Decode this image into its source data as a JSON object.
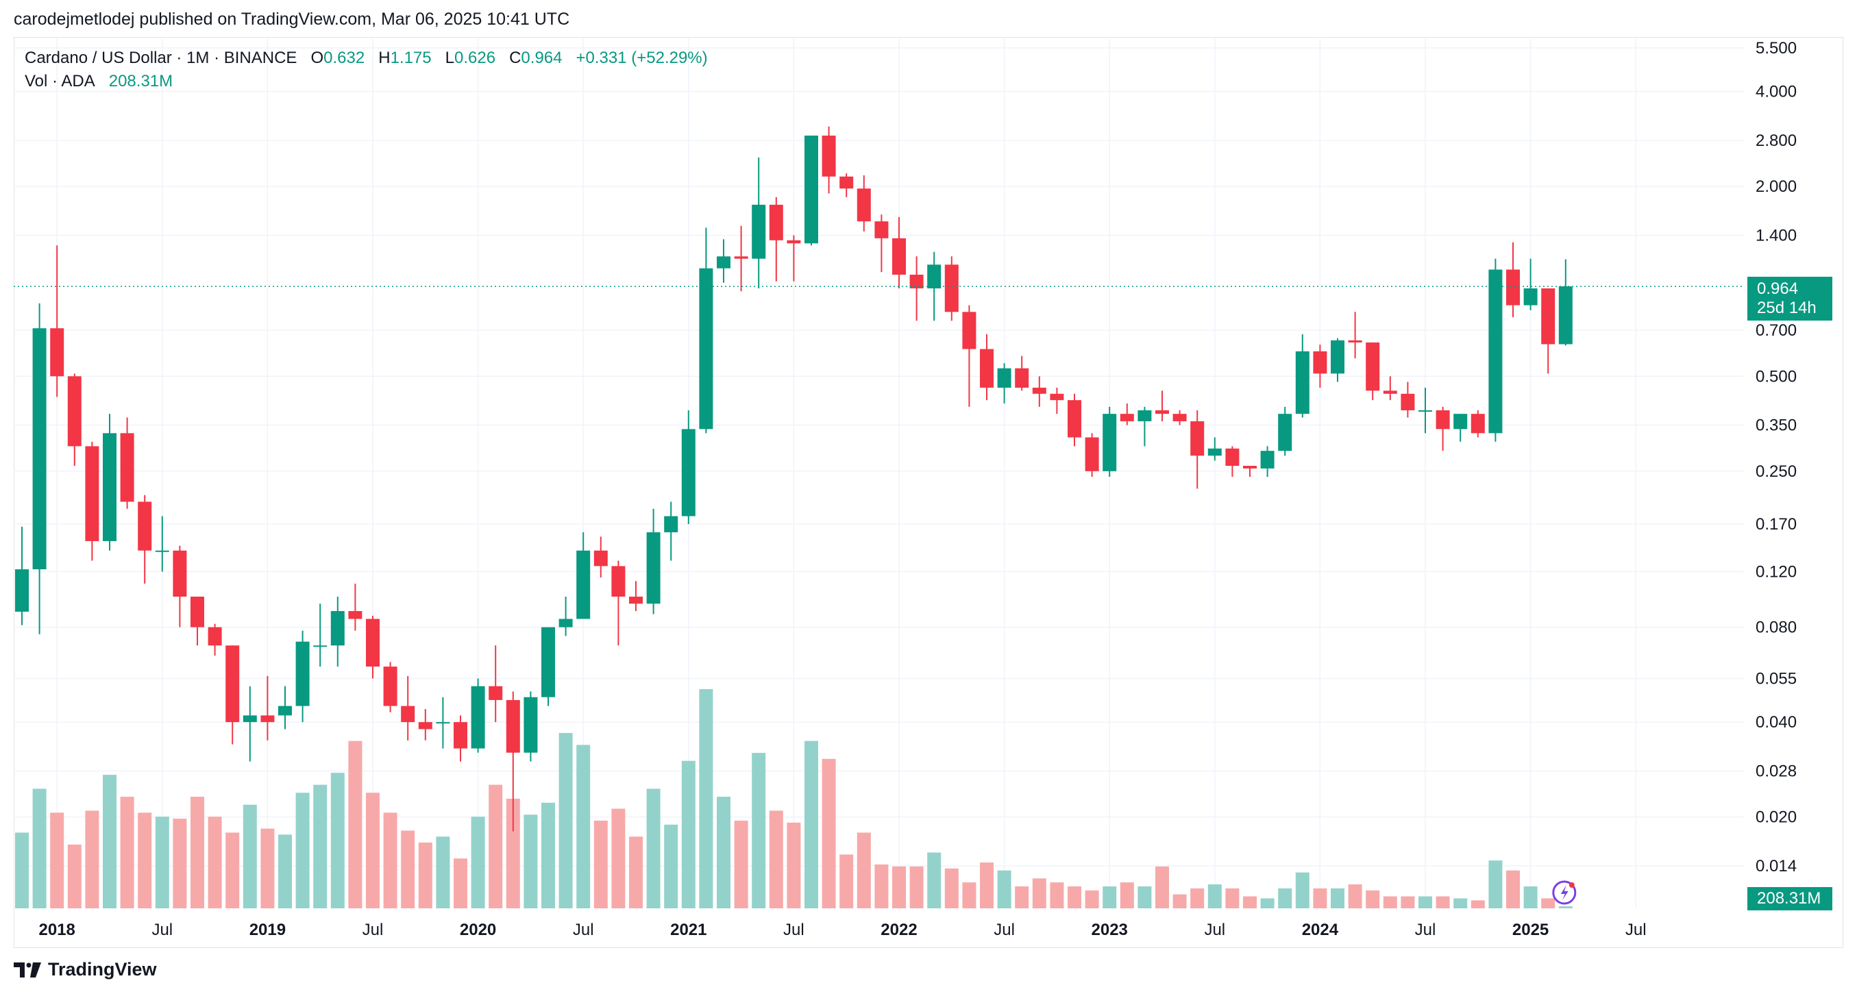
{
  "header": {
    "published_line": "carodejmetlodej published on TradingView.com, Mar 06, 2025 10:41 UTC"
  },
  "legend": {
    "symbol": "Cardano / US Dollar · 1M · BINANCE",
    "o_label": "O",
    "o_value": "0.632",
    "h_label": "H",
    "h_value": "1.175",
    "l_label": "L",
    "l_value": "0.626",
    "c_label": "C",
    "c_value": "0.964",
    "change": "+0.331 (+52.29%)",
    "vol_label": "Vol · ADA",
    "vol_value": "208.31M"
  },
  "price_tag": {
    "price": "0.964",
    "countdown": "25d 14h"
  },
  "volume_tag": "208.31M",
  "footer": {
    "brand": "TradingView"
  },
  "colors": {
    "up": "#089981",
    "down": "#f23645",
    "up_volume": "#93d2cb",
    "down_volume": "#f7a9a9",
    "grid": "#f0f3fa"
  },
  "chart_data": {
    "type": "candlestick",
    "interval": "1M",
    "y_scale": "log",
    "y_ticks": [
      "5.500",
      "4.000",
      "2.800",
      "2.000",
      "1.400",
      "0.964",
      "0.700",
      "0.500",
      "0.350",
      "0.250",
      "0.170",
      "0.120",
      "0.080",
      "0.055",
      "0.040",
      "0.028",
      "0.020",
      "0.014"
    ],
    "x_ticks": [
      "2018",
      "Jul",
      "2019",
      "Jul",
      "2020",
      "Jul",
      "2021",
      "Jul",
      "2022",
      "Jul",
      "2023",
      "Jul",
      "2024",
      "Jul",
      "2025",
      "Jul"
    ],
    "candles": [
      {
        "date": "2017-11",
        "o": 0.0896,
        "h": 0.1667,
        "l": 0.0812,
        "c": 0.1221,
        "v": 38
      },
      {
        "date": "2017-12",
        "o": 0.1221,
        "h": 0.8516,
        "l": 0.076,
        "c": 0.71,
        "v": 60
      },
      {
        "date": "2018-01",
        "o": 0.71,
        "h": 1.3,
        "l": 0.43,
        "c": 0.5,
        "v": 48
      },
      {
        "date": "2018-02",
        "o": 0.5,
        "h": 0.51,
        "l": 0.26,
        "c": 0.3,
        "v": 32
      },
      {
        "date": "2018-03",
        "o": 0.3,
        "h": 0.31,
        "l": 0.13,
        "c": 0.15,
        "v": 49
      },
      {
        "date": "2018-04",
        "o": 0.15,
        "h": 0.38,
        "l": 0.14,
        "c": 0.33,
        "v": 67
      },
      {
        "date": "2018-05",
        "o": 0.33,
        "h": 0.37,
        "l": 0.19,
        "c": 0.2,
        "v": 56
      },
      {
        "date": "2018-06",
        "o": 0.2,
        "h": 0.21,
        "l": 0.11,
        "c": 0.14,
        "v": 48
      },
      {
        "date": "2018-07",
        "o": 0.14,
        "h": 0.18,
        "l": 0.12,
        "c": 0.14,
        "v": 46
      },
      {
        "date": "2018-08",
        "o": 0.14,
        "h": 0.145,
        "l": 0.08,
        "c": 0.1,
        "v": 45
      },
      {
        "date": "2018-09",
        "o": 0.1,
        "h": 0.096,
        "l": 0.07,
        "c": 0.08,
        "v": 56
      },
      {
        "date": "2018-10",
        "o": 0.08,
        "h": 0.082,
        "l": 0.065,
        "c": 0.07,
        "v": 46
      },
      {
        "date": "2018-11",
        "o": 0.07,
        "h": 0.07,
        "l": 0.034,
        "c": 0.04,
        "v": 38
      },
      {
        "date": "2018-12",
        "o": 0.04,
        "h": 0.052,
        "l": 0.03,
        "c": 0.042,
        "v": 52
      },
      {
        "date": "2019-01",
        "o": 0.042,
        "h": 0.056,
        "l": 0.035,
        "c": 0.04,
        "v": 40
      },
      {
        "date": "2019-02",
        "o": 0.042,
        "h": 0.052,
        "l": 0.038,
        "c": 0.045,
        "v": 37
      },
      {
        "date": "2019-03",
        "o": 0.045,
        "h": 0.078,
        "l": 0.04,
        "c": 0.072,
        "v": 58
      },
      {
        "date": "2019-04",
        "o": 0.07,
        "h": 0.095,
        "l": 0.06,
        "c": 0.07,
        "v": 62
      },
      {
        "date": "2019-05",
        "o": 0.07,
        "h": 0.1,
        "l": 0.06,
        "c": 0.09,
        "v": 68
      },
      {
        "date": "2019-06",
        "o": 0.09,
        "h": 0.11,
        "l": 0.078,
        "c": 0.085,
        "v": 84
      },
      {
        "date": "2019-07",
        "o": 0.085,
        "h": 0.087,
        "l": 0.055,
        "c": 0.06,
        "v": 58
      },
      {
        "date": "2019-08",
        "o": 0.06,
        "h": 0.062,
        "l": 0.043,
        "c": 0.045,
        "v": 48
      },
      {
        "date": "2019-09",
        "o": 0.045,
        "h": 0.056,
        "l": 0.035,
        "c": 0.04,
        "v": 39
      },
      {
        "date": "2019-10",
        "o": 0.04,
        "h": 0.044,
        "l": 0.035,
        "c": 0.038,
        "v": 33
      },
      {
        "date": "2019-11",
        "o": 0.04,
        "h": 0.048,
        "l": 0.033,
        "c": 0.04,
        "v": 36
      },
      {
        "date": "2019-12",
        "o": 0.04,
        "h": 0.042,
        "l": 0.03,
        "c": 0.033,
        "v": 25
      },
      {
        "date": "2020-01",
        "o": 0.033,
        "h": 0.055,
        "l": 0.032,
        "c": 0.052,
        "v": 46
      },
      {
        "date": "2020-02",
        "o": 0.052,
        "h": 0.07,
        "l": 0.04,
        "c": 0.047,
        "v": 62
      },
      {
        "date": "2020-03",
        "o": 0.047,
        "h": 0.05,
        "l": 0.018,
        "c": 0.032,
        "v": 55
      },
      {
        "date": "2020-04",
        "o": 0.032,
        "h": 0.05,
        "l": 0.03,
        "c": 0.048,
        "v": 47
      },
      {
        "date": "2020-05",
        "o": 0.048,
        "h": 0.072,
        "l": 0.045,
        "c": 0.08,
        "v": 53
      },
      {
        "date": "2020-06",
        "o": 0.08,
        "h": 0.1,
        "l": 0.075,
        "c": 0.085,
        "v": 88
      },
      {
        "date": "2020-07",
        "o": 0.085,
        "h": 0.16,
        "l": 0.09,
        "c": 0.14,
        "v": 82
      },
      {
        "date": "2020-08",
        "o": 0.14,
        "h": 0.155,
        "l": 0.115,
        "c": 0.125,
        "v": 44
      },
      {
        "date": "2020-09",
        "o": 0.125,
        "h": 0.13,
        "l": 0.07,
        "c": 0.1,
        "v": 50
      },
      {
        "date": "2020-10",
        "o": 0.1,
        "h": 0.112,
        "l": 0.09,
        "c": 0.095,
        "v": 36
      },
      {
        "date": "2020-11",
        "o": 0.095,
        "h": 0.19,
        "l": 0.088,
        "c": 0.16,
        "v": 60
      },
      {
        "date": "2020-12",
        "o": 0.16,
        "h": 0.2,
        "l": 0.13,
        "c": 0.18,
        "v": 42
      },
      {
        "date": "2021-01",
        "o": 0.18,
        "h": 0.39,
        "l": 0.17,
        "c": 0.34,
        "v": 74
      },
      {
        "date": "2021-02",
        "o": 0.34,
        "h": 1.48,
        "l": 0.33,
        "c": 1.1,
        "v": 110
      },
      {
        "date": "2021-03",
        "o": 1.1,
        "h": 1.36,
        "l": 0.99,
        "c": 1.2,
        "v": 56
      },
      {
        "date": "2021-04",
        "o": 1.2,
        "h": 1.5,
        "l": 0.93,
        "c": 1.18,
        "v": 44
      },
      {
        "date": "2021-05",
        "o": 1.18,
        "h": 2.47,
        "l": 0.95,
        "c": 1.75,
        "v": 78
      },
      {
        "date": "2021-06",
        "o": 1.75,
        "h": 1.85,
        "l": 1.0,
        "c": 1.35,
        "v": 49
      },
      {
        "date": "2021-07",
        "o": 1.35,
        "h": 1.4,
        "l": 1.0,
        "c": 1.32,
        "v": 43
      },
      {
        "date": "2021-08",
        "o": 1.32,
        "h": 2.9,
        "l": 1.3,
        "c": 2.9,
        "v": 84
      },
      {
        "date": "2021-09",
        "o": 2.9,
        "h": 3.1,
        "l": 1.9,
        "c": 2.15,
        "v": 75
      },
      {
        "date": "2021-10",
        "o": 2.15,
        "h": 2.2,
        "l": 1.85,
        "c": 1.97,
        "v": 27
      },
      {
        "date": "2021-11",
        "o": 1.97,
        "h": 2.17,
        "l": 1.44,
        "c": 1.55,
        "v": 38
      },
      {
        "date": "2021-12",
        "o": 1.55,
        "h": 1.63,
        "l": 1.07,
        "c": 1.37,
        "v": 22
      },
      {
        "date": "2022-01",
        "o": 1.37,
        "h": 1.6,
        "l": 0.95,
        "c": 1.05,
        "v": 21
      },
      {
        "date": "2022-02",
        "o": 1.05,
        "h": 1.2,
        "l": 0.75,
        "c": 0.95,
        "v": 21
      },
      {
        "date": "2022-03",
        "o": 0.95,
        "h": 1.24,
        "l": 0.75,
        "c": 1.13,
        "v": 28
      },
      {
        "date": "2022-04",
        "o": 1.13,
        "h": 1.2,
        "l": 0.75,
        "c": 0.8,
        "v": 20
      },
      {
        "date": "2022-05",
        "o": 0.8,
        "h": 0.84,
        "l": 0.4,
        "c": 0.61,
        "v": 13
      },
      {
        "date": "2022-06",
        "o": 0.61,
        "h": 0.68,
        "l": 0.42,
        "c": 0.46,
        "v": 23
      },
      {
        "date": "2022-07",
        "o": 0.46,
        "h": 0.55,
        "l": 0.41,
        "c": 0.53,
        "v": 19
      },
      {
        "date": "2022-08",
        "o": 0.53,
        "h": 0.58,
        "l": 0.45,
        "c": 0.46,
        "v": 11
      },
      {
        "date": "2022-09",
        "o": 0.46,
        "h": 0.5,
        "l": 0.4,
        "c": 0.44,
        "v": 15
      },
      {
        "date": "2022-10",
        "o": 0.44,
        "h": 0.46,
        "l": 0.38,
        "c": 0.42,
        "v": 13
      },
      {
        "date": "2022-11",
        "o": 0.42,
        "h": 0.44,
        "l": 0.3,
        "c": 0.32,
        "v": 11
      },
      {
        "date": "2022-12",
        "o": 0.32,
        "h": 0.33,
        "l": 0.24,
        "c": 0.25,
        "v": 9
      },
      {
        "date": "2023-01",
        "o": 0.25,
        "h": 0.4,
        "l": 0.24,
        "c": 0.38,
        "v": 11
      },
      {
        "date": "2023-02",
        "o": 0.38,
        "h": 0.41,
        "l": 0.35,
        "c": 0.36,
        "v": 13
      },
      {
        "date": "2023-03",
        "o": 0.36,
        "h": 0.4,
        "l": 0.3,
        "c": 0.39,
        "v": 11
      },
      {
        "date": "2023-04",
        "o": 0.39,
        "h": 0.45,
        "l": 0.36,
        "c": 0.38,
        "v": 21
      },
      {
        "date": "2023-05",
        "o": 0.38,
        "h": 0.39,
        "l": 0.35,
        "c": 0.36,
        "v": 7
      },
      {
        "date": "2023-06",
        "o": 0.36,
        "h": 0.39,
        "l": 0.22,
        "c": 0.28,
        "v": 10
      },
      {
        "date": "2023-07",
        "o": 0.28,
        "h": 0.32,
        "l": 0.27,
        "c": 0.295,
        "v": 12
      },
      {
        "date": "2023-08",
        "o": 0.295,
        "h": 0.3,
        "l": 0.24,
        "c": 0.26,
        "v": 10
      },
      {
        "date": "2023-09",
        "o": 0.26,
        "h": 0.26,
        "l": 0.24,
        "c": 0.255,
        "v": 6
      },
      {
        "date": "2023-10",
        "o": 0.255,
        "h": 0.3,
        "l": 0.24,
        "c": 0.29,
        "v": 5
      },
      {
        "date": "2023-11",
        "o": 0.29,
        "h": 0.4,
        "l": 0.28,
        "c": 0.38,
        "v": 10
      },
      {
        "date": "2023-12",
        "o": 0.38,
        "h": 0.68,
        "l": 0.37,
        "c": 0.6,
        "v": 18
      },
      {
        "date": "2024-01",
        "o": 0.6,
        "h": 0.63,
        "l": 0.46,
        "c": 0.51,
        "v": 10
      },
      {
        "date": "2024-02",
        "o": 0.51,
        "h": 0.66,
        "l": 0.48,
        "c": 0.65,
        "v": 10
      },
      {
        "date": "2024-03",
        "o": 0.65,
        "h": 0.8,
        "l": 0.57,
        "c": 0.64,
        "v": 12
      },
      {
        "date": "2024-04",
        "o": 0.64,
        "h": 0.64,
        "l": 0.42,
        "c": 0.45,
        "v": 9
      },
      {
        "date": "2024-05",
        "o": 0.45,
        "h": 0.5,
        "l": 0.42,
        "c": 0.44,
        "v": 6
      },
      {
        "date": "2024-06",
        "o": 0.44,
        "h": 0.48,
        "l": 0.37,
        "c": 0.39,
        "v": 6
      },
      {
        "date": "2024-07",
        "o": 0.39,
        "h": 0.46,
        "l": 0.33,
        "c": 0.39,
        "v": 6
      },
      {
        "date": "2024-08",
        "o": 0.39,
        "h": 0.4,
        "l": 0.29,
        "c": 0.34,
        "v": 6
      },
      {
        "date": "2024-09",
        "o": 0.34,
        "h": 0.38,
        "l": 0.31,
        "c": 0.38,
        "v": 5
      },
      {
        "date": "2024-10",
        "o": 0.38,
        "h": 0.39,
        "l": 0.32,
        "c": 0.33,
        "v": 4
      },
      {
        "date": "2024-11",
        "o": 0.33,
        "h": 1.18,
        "l": 0.31,
        "c": 1.09,
        "v": 24
      },
      {
        "date": "2024-12",
        "o": 1.09,
        "h": 1.33,
        "l": 0.77,
        "c": 0.84,
        "v": 19
      },
      {
        "date": "2025-01",
        "o": 0.84,
        "h": 1.18,
        "l": 0.81,
        "c": 0.95,
        "v": 11
      },
      {
        "date": "2025-02",
        "o": 0.95,
        "h": 0.95,
        "l": 0.51,
        "c": 0.632,
        "v": 5
      },
      {
        "date": "2025-03",
        "o": 0.632,
        "h": 1.175,
        "l": 0.626,
        "c": 0.964,
        "v": 1
      }
    ]
  }
}
